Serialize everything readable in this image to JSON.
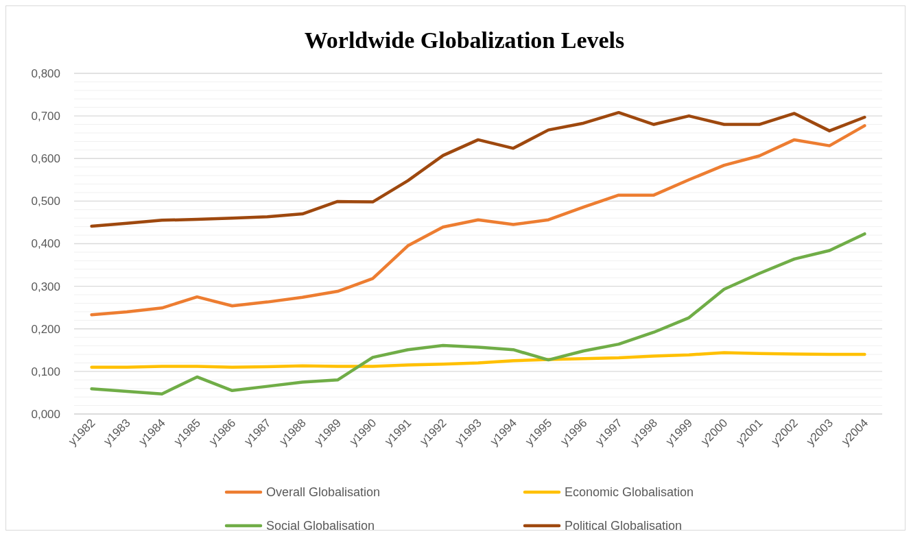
{
  "chart_data": {
    "type": "line",
    "title": "Worldwide Globalization Levels",
    "categories": [
      "y1982",
      "y1983",
      "y1984",
      "y1985",
      "y1986",
      "y1987",
      "y1988",
      "y1989",
      "y1990",
      "y1991",
      "y1992",
      "y1993",
      "y1994",
      "y1995",
      "y1996",
      "y1997",
      "y1998",
      "y1999",
      "y2000",
      "y2001",
      "y2002",
      "y2003",
      "y2004"
    ],
    "series": [
      {
        "name": "Overall Globalisation",
        "color": "#ed7d31",
        "values": [
          0.233,
          0.24,
          0.249,
          0.275,
          0.254,
          0.263,
          0.274,
          0.288,
          0.318,
          0.395,
          0.439,
          0.456,
          0.445,
          0.456,
          0.486,
          0.514,
          0.514,
          0.55,
          0.584,
          0.606,
          0.644,
          0.63,
          0.677
        ]
      },
      {
        "name": "Economic Globalisation",
        "color": "#ffc000",
        "values": [
          0.11,
          0.11,
          0.112,
          0.112,
          0.11,
          0.111,
          0.113,
          0.112,
          0.112,
          0.115,
          0.117,
          0.12,
          0.125,
          0.128,
          0.13,
          0.132,
          0.136,
          0.139,
          0.144,
          0.142,
          0.141,
          0.14,
          0.14
        ]
      },
      {
        "name": "Social Globalisation",
        "color": "#70ad47",
        "values": [
          0.059,
          0.053,
          0.047,
          0.087,
          0.055,
          0.065,
          0.075,
          0.08,
          0.133,
          0.151,
          0.161,
          0.157,
          0.151,
          0.127,
          0.148,
          0.164,
          0.192,
          0.226,
          0.293,
          0.33,
          0.364,
          0.384,
          0.423
        ]
      },
      {
        "name": "Political Globalisation",
        "color": "#9e480e",
        "values": [
          0.441,
          0.448,
          0.455,
          0.457,
          0.46,
          0.463,
          0.47,
          0.499,
          0.498,
          0.548,
          0.607,
          0.644,
          0.624,
          0.667,
          0.683,
          0.708,
          0.68,
          0.7,
          0.68,
          0.68,
          0.706,
          0.665,
          0.697
        ]
      }
    ],
    "ylim": [
      0,
      0.8
    ],
    "yticks": [
      {
        "value": 0,
        "label": "0,000"
      },
      {
        "value": 0.02,
        "label": null
      },
      {
        "value": 0.04,
        "label": null
      },
      {
        "value": 0.06,
        "label": null
      },
      {
        "value": 0.08,
        "label": null
      },
      {
        "value": 0.1,
        "label": "0,100"
      },
      {
        "value": 0.12,
        "label": null
      },
      {
        "value": 0.14,
        "label": null
      },
      {
        "value": 0.16,
        "label": null
      },
      {
        "value": 0.18,
        "label": null
      },
      {
        "value": 0.2,
        "label": "0,200"
      },
      {
        "value": 0.22,
        "label": null
      },
      {
        "value": 0.24,
        "label": null
      },
      {
        "value": 0.26,
        "label": null
      },
      {
        "value": 0.28,
        "label": null
      },
      {
        "value": 0.3,
        "label": "0,300"
      },
      {
        "value": 0.32,
        "label": null
      },
      {
        "value": 0.34,
        "label": null
      },
      {
        "value": 0.36,
        "label": null
      },
      {
        "value": 0.38,
        "label": null
      },
      {
        "value": 0.4,
        "label": "0,400"
      },
      {
        "value": 0.42,
        "label": null
      },
      {
        "value": 0.44,
        "label": null
      },
      {
        "value": 0.46,
        "label": null
      },
      {
        "value": 0.48,
        "label": null
      },
      {
        "value": 0.5,
        "label": "0,500"
      },
      {
        "value": 0.52,
        "label": null
      },
      {
        "value": 0.54,
        "label": null
      },
      {
        "value": 0.56,
        "label": null
      },
      {
        "value": 0.58,
        "label": null
      },
      {
        "value": 0.6,
        "label": "0,600"
      },
      {
        "value": 0.62,
        "label": null
      },
      {
        "value": 0.64,
        "label": null
      },
      {
        "value": 0.66,
        "label": null
      },
      {
        "value": 0.68,
        "label": null
      },
      {
        "value": 0.7,
        "label": "0,700"
      },
      {
        "value": 0.72,
        "label": null
      },
      {
        "value": 0.74,
        "label": null
      },
      {
        "value": 0.76,
        "label": null
      },
      {
        "value": 0.78,
        "label": null
      },
      {
        "value": 0.8,
        "label": "0,800"
      }
    ],
    "grid": "y",
    "legend": "bottom",
    "marker": "none",
    "line_style": "solid"
  }
}
